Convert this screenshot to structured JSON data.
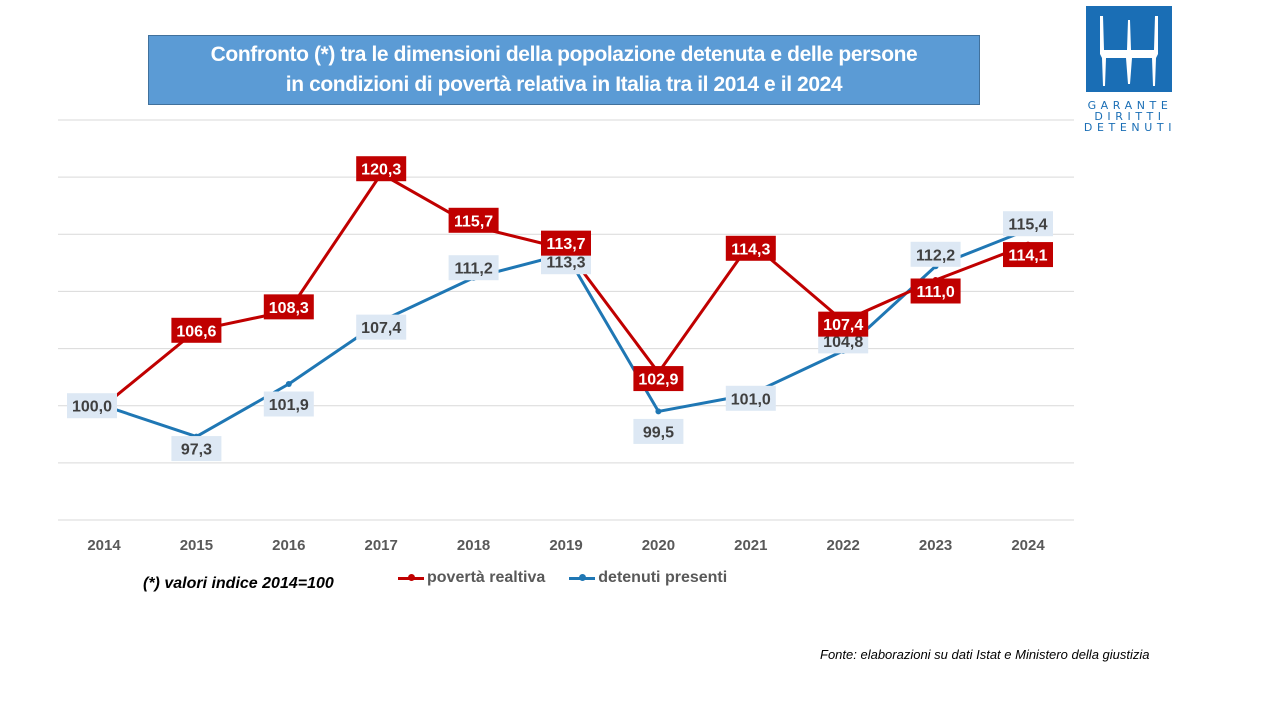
{
  "title": {
    "line1": "Confronto (*) tra le dimensioni della popolazione detenuta e delle persone",
    "line2": "in condizioni di povertà relativa in Italia tra il 2014 e il 2024"
  },
  "logo": {
    "icon": "garante-logo-icon",
    "lines": [
      "GARANTE",
      "DIRITTI",
      "DETENUTI"
    ],
    "color": "#1a6eb5"
  },
  "footnote": "(*) valori indice 2014=100",
  "source": "Fonte: elaborazioni su dati Istat e Ministero della giustizia",
  "chart_data": {
    "type": "line",
    "title": "Confronto (*) tra le dimensioni della popolazione detenuta e delle persone in condizioni di povertà relativa in Italia tra il 2014 e il 2024",
    "xlabel": "",
    "ylabel": "",
    "categories": [
      "2014",
      "2015",
      "2016",
      "2017",
      "2018",
      "2019",
      "2020",
      "2021",
      "2022",
      "2023",
      "2024"
    ],
    "ylim": [
      90,
      125
    ],
    "y_gridlines": [
      90,
      95,
      100,
      105,
      110,
      115,
      120,
      125
    ],
    "y_tick_labels_visible": false,
    "grid": true,
    "legend_position": "bottom",
    "series": [
      {
        "name": "povertà realtiva",
        "color": "#c00000",
        "label_bg": "#c00000",
        "label_color": "#ffffff",
        "values": [
          100.0,
          106.6,
          108.3,
          120.3,
          115.7,
          113.7,
          102.9,
          114.3,
          107.4,
          111.0,
          114.1
        ],
        "labels": [
          null,
          "106,6",
          "108,3",
          "120,3",
          "115,7",
          "113,7",
          "102,9",
          "114,3",
          "107,4",
          "111,0",
          "114,1"
        ]
      },
      {
        "name": "detenuti presenti",
        "color": "#1f77b4",
        "label_bg": "#dde8f4",
        "label_color": "#404040",
        "values": [
          100.0,
          97.3,
          101.9,
          107.4,
          111.2,
          113.3,
          99.5,
          101.0,
          104.8,
          112.2,
          115.4
        ],
        "labels": [
          "100,0",
          "97,3",
          "101,9",
          "107,4",
          "111,2",
          "113,3",
          "99,5",
          "101,0",
          "104,8",
          "112,2",
          "115,4"
        ]
      }
    ]
  }
}
